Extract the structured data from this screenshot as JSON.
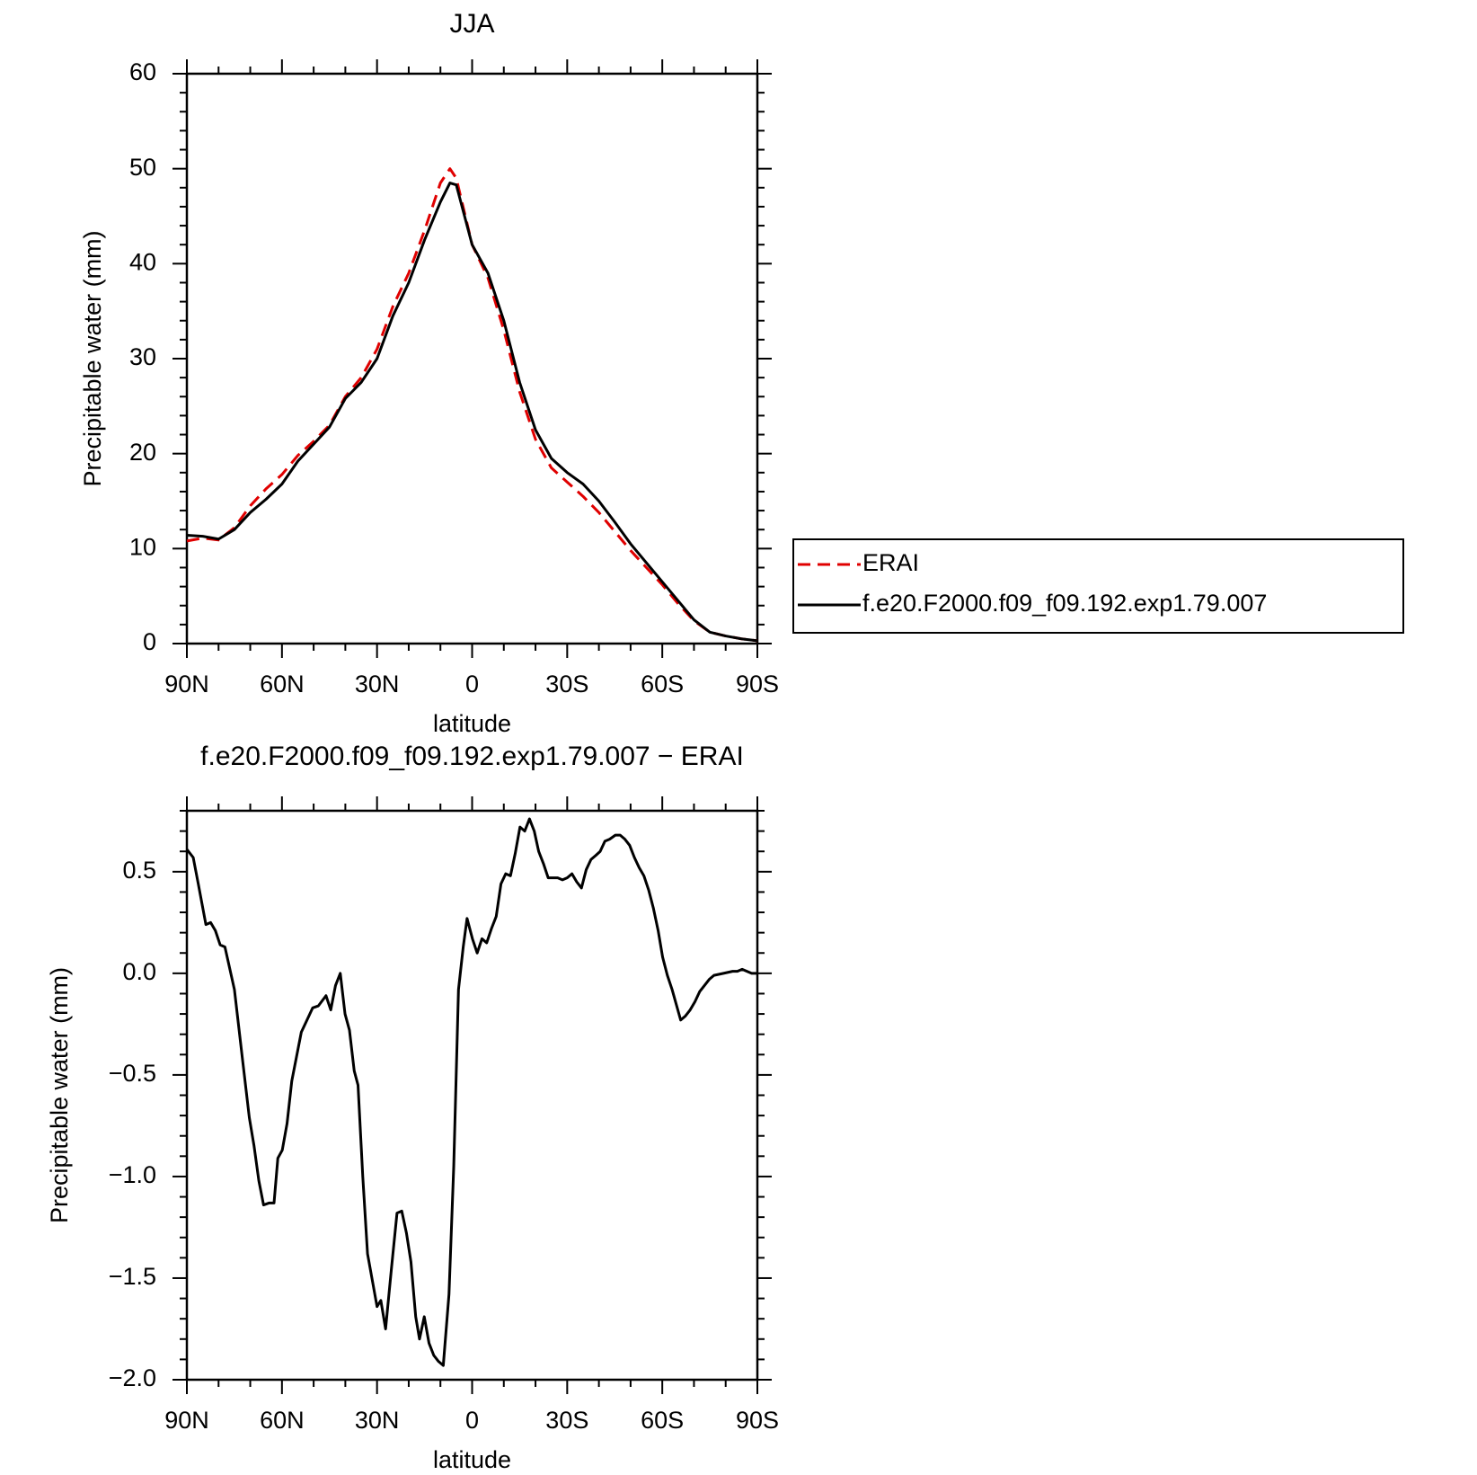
{
  "chart_data": [
    {
      "type": "line",
      "title": "JJA",
      "x_label": "latitude",
      "y_label": "Precipitable water (mm)",
      "x": [
        90,
        85,
        80,
        75,
        70,
        65,
        60,
        55,
        50,
        45,
        40,
        35,
        30,
        25,
        20,
        15,
        10,
        7,
        5,
        0,
        -5,
        -10,
        -15,
        -20,
        -25,
        -30,
        -35,
        -40,
        -45,
        -50,
        -55,
        -60,
        -65,
        -70,
        -75,
        -80,
        -85,
        -90
      ],
      "series": [
        {
          "name": "ERAI",
          "color": "#e00000",
          "line_style": "dashed",
          "values": [
            10.8,
            11.1,
            10.9,
            12.2,
            14.5,
            16.3,
            17.8,
            19.8,
            21.3,
            23.0,
            26.0,
            28.0,
            31.0,
            35.5,
            39.0,
            43.5,
            48.5,
            50.0,
            49.0,
            42.0,
            38.5,
            33.0,
            26.5,
            21.5,
            18.5,
            17.0,
            15.5,
            13.8,
            11.8,
            9.8,
            8.0,
            6.2,
            4.2,
            2.4,
            1.2,
            0.8,
            0.5,
            0.3
          ]
        },
        {
          "name": "f.e20.F2000.f09_f09.192.exp1.79.007",
          "color": "#000000",
          "line_style": "solid",
          "values": [
            11.4,
            11.3,
            11.0,
            12.0,
            13.8,
            15.2,
            16.8,
            19.2,
            21.0,
            22.8,
            25.8,
            27.5,
            30.0,
            34.5,
            38.0,
            42.5,
            46.5,
            48.5,
            48.3,
            42.0,
            39.0,
            34.0,
            27.5,
            22.5,
            19.5,
            18.0,
            16.8,
            15.0,
            12.8,
            10.5,
            8.5,
            6.5,
            4.5,
            2.5,
            1.2,
            0.8,
            0.5,
            0.3
          ]
        }
      ],
      "xlim": [
        90,
        -90
      ],
      "xticks": [
        {
          "value": 90,
          "label": "90N"
        },
        {
          "value": 60,
          "label": "60N"
        },
        {
          "value": 30,
          "label": "30N"
        },
        0,
        {
          "value": -30,
          "label": "30S"
        },
        {
          "value": -60,
          "label": "60S"
        },
        {
          "value": -90,
          "label": "90S"
        }
      ],
      "ylim": [
        0,
        60
      ],
      "yticks": [
        0,
        10,
        20,
        30,
        40,
        50,
        60
      ],
      "legend": "right"
    },
    {
      "type": "line",
      "title": "f.e20.F2000.f09_f09.192.exp1.79.007 − ERAI",
      "x_label": "latitude",
      "y_label": "Precipitable water (mm)",
      "x": [
        90,
        88,
        86.4,
        84,
        82.5,
        81,
        79.5,
        78,
        75,
        72.4,
        70.3,
        68.8,
        67.3,
        65.8,
        64,
        62.5,
        61.3,
        59.9,
        58.4,
        56.9,
        55.4,
        53.9,
        52.4,
        50.3,
        48.5,
        46.1,
        44.6,
        43.1,
        41.6,
        40.1,
        38.7,
        37.2,
        36,
        34.5,
        33,
        31.5,
        30,
        28.8,
        27.3,
        25.5,
        23.7,
        22.2,
        20.7,
        19.3,
        17.8,
        16.6,
        15.1,
        13.6,
        12.1,
        10.6,
        9.1,
        7.3,
        5.8,
        4.3,
        2.8,
        1.6,
        -0.1,
        -1.6,
        -3.1,
        -4.6,
        -6.1,
        -7.6,
        -9.1,
        -10.6,
        -12.1,
        -13.6,
        -15.1,
        -16.6,
        -18.1,
        -19.6,
        -21,
        -22.5,
        -24,
        -27,
        -28.5,
        -30,
        -31.5,
        -33,
        -34.5,
        -36,
        -37.5,
        -39,
        -40.4,
        -41.9,
        -43.4,
        -45.2,
        -46.7,
        -48.2,
        -49.7,
        -51.2,
        -52.7,
        -54.2,
        -55.7,
        -57.2,
        -58.7,
        -60.1,
        -61.6,
        -63.1,
        -65.8,
        -67.3,
        -68.8,
        -70.3,
        -71.8,
        -73.3,
        -74.8,
        -76.3,
        -79.3,
        -82.2,
        -83.7,
        -85.2,
        -86.7,
        -88.2,
        -90
      ],
      "values": [
        0.61,
        0.57,
        0.44,
        0.24,
        0.25,
        0.21,
        0.14,
        0.13,
        -0.08,
        -0.43,
        -0.71,
        -0.85,
        -1.02,
        -1.14,
        -1.13,
        -1.13,
        -0.91,
        -0.87,
        -0.74,
        -0.53,
        -0.41,
        -0.29,
        -0.24,
        -0.17,
        -0.16,
        -0.11,
        -0.18,
        -0.06,
        0.0,
        -0.2,
        -0.28,
        -0.48,
        -0.55,
        -1.0,
        -1.38,
        -1.51,
        -1.64,
        -1.61,
        -1.75,
        -1.46,
        -1.18,
        -1.17,
        -1.28,
        -1.42,
        -1.69,
        -1.8,
        -1.69,
        -1.82,
        -1.88,
        -1.91,
        -1.93,
        -1.58,
        -0.95,
        -0.08,
        0.13,
        0.27,
        0.17,
        0.1,
        0.17,
        0.15,
        0.22,
        0.28,
        0.44,
        0.49,
        0.48,
        0.59,
        0.72,
        0.7,
        0.76,
        0.7,
        0.6,
        0.54,
        0.47,
        0.47,
        0.46,
        0.47,
        0.49,
        0.45,
        0.42,
        0.51,
        0.56,
        0.58,
        0.6,
        0.65,
        0.66,
        0.68,
        0.68,
        0.66,
        0.63,
        0.57,
        0.52,
        0.48,
        0.41,
        0.32,
        0.21,
        0.08,
        -0.01,
        -0.08,
        -0.23,
        -0.21,
        -0.18,
        -0.14,
        -0.09,
        -0.06,
        -0.03,
        -0.01,
        0.0,
        0.01,
        0.01,
        0.02,
        0.01,
        0.0,
        0.0
      ],
      "color": "#000000",
      "xlim": [
        90,
        -90
      ],
      "xticks": [
        {
          "value": 90,
          "label": "90N"
        },
        {
          "value": 60,
          "label": "60N"
        },
        {
          "value": 30,
          "label": "30N"
        },
        0,
        {
          "value": -30,
          "label": "30S"
        },
        {
          "value": -60,
          "label": "60S"
        },
        {
          "value": -90,
          "label": "90S"
        }
      ],
      "ylim": [
        -2.0,
        0.8
      ],
      "yticks": [
        {
          "value": -2.0,
          "label": "−2.0"
        },
        {
          "value": -1.5,
          "label": "−1.5"
        },
        {
          "value": -1.0,
          "label": "−1.0"
        },
        {
          "value": -0.5,
          "label": "−0.5"
        },
        {
          "value": 0,
          "label": "0.0"
        },
        0.5
      ]
    }
  ]
}
